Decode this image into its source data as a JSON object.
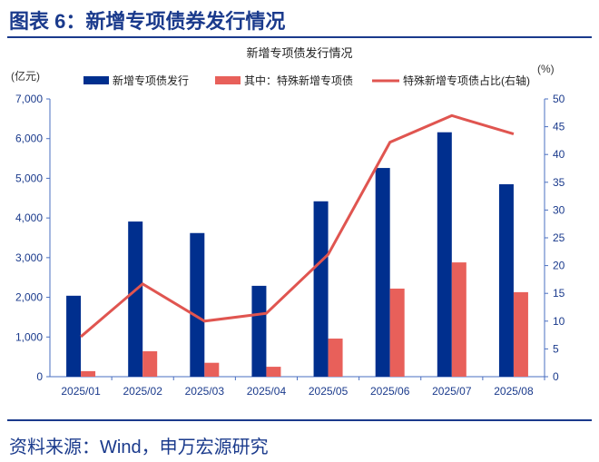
{
  "figure_title": "图表 6：新增专项债券发行情况",
  "source": "资料来源：Wind，申万宏源研究",
  "chart_data": {
    "type": "bar",
    "title": "新增专项债发行情况",
    "ylabel": "(亿元)",
    "y2label": "(%)",
    "ylim": [
      0,
      7000
    ],
    "y2lim": [
      0,
      50
    ],
    "yticks": [
      "0",
      "1,000",
      "2,000",
      "3,000",
      "4,000",
      "5,000",
      "6,000",
      "7,000"
    ],
    "y2ticks": [
      "0",
      "5",
      "10",
      "15",
      "20",
      "25",
      "30",
      "35",
      "40",
      "45",
      "50"
    ],
    "categories": [
      "2025/01",
      "2025/02",
      "2025/03",
      "2025/04",
      "2025/05",
      "2025/06",
      "2025/07",
      "2025/08"
    ],
    "series": [
      {
        "name": "新增专项债发行",
        "type": "bar",
        "color": "#002f8e",
        "values": [
          2040,
          3910,
          3620,
          2290,
          4420,
          5260,
          6160,
          4850
        ]
      },
      {
        "name": "其中：特殊新增专项债",
        "type": "bar",
        "color": "#e8605a",
        "values": [
          140,
          640,
          350,
          250,
          960,
          2220,
          2880,
          2130
        ]
      },
      {
        "name": "特殊新增专项债占比(右轴)",
        "type": "line",
        "axis": "right",
        "color": "#e05550",
        "values": [
          7.2,
          16.7,
          10.0,
          11.4,
          22.0,
          42.2,
          47.0,
          43.7
        ]
      }
    ],
    "legend": "top"
  }
}
